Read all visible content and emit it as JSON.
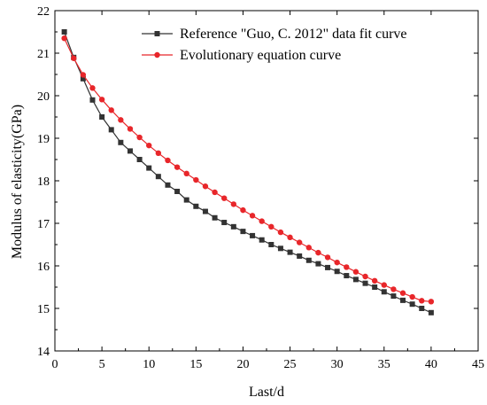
{
  "chart_data": {
    "type": "line",
    "xlabel": "Last/d",
    "ylabel": "Modulus of elasticity(GPa)",
    "xlim": [
      0,
      45
    ],
    "ylim": [
      14,
      22
    ],
    "xticks": [
      0,
      5,
      10,
      15,
      20,
      25,
      30,
      35,
      40,
      45
    ],
    "yticks": [
      14,
      15,
      16,
      17,
      18,
      19,
      20,
      21,
      22
    ],
    "grid": false,
    "legend_position": "top-right",
    "series": [
      {
        "name": "Reference \"Guo, C. 2012\" data fit curve",
        "color": "#333333",
        "marker": "square",
        "x": [
          1,
          2,
          3,
          4,
          5,
          6,
          7,
          8,
          9,
          10,
          11,
          12,
          13,
          14,
          15,
          16,
          17,
          18,
          19,
          20,
          21,
          22,
          23,
          24,
          25,
          26,
          27,
          28,
          29,
          30,
          31,
          32,
          33,
          34,
          35,
          36,
          37,
          38,
          39,
          40
        ],
        "values": [
          21.5,
          20.9,
          20.4,
          19.9,
          19.5,
          19.2,
          18.9,
          18.7,
          18.5,
          18.3,
          18.1,
          17.9,
          17.75,
          17.55,
          17.4,
          17.28,
          17.13,
          17.02,
          16.92,
          16.81,
          16.71,
          16.61,
          16.5,
          16.41,
          16.32,
          16.23,
          16.13,
          16.05,
          15.96,
          15.87,
          15.77,
          15.68,
          15.59,
          15.5,
          15.39,
          15.29,
          15.19,
          15.1,
          15.0,
          14.9
        ]
      },
      {
        "name": "Evolutionary equation curve",
        "color": "#e8262a",
        "marker": "circle",
        "x": [
          1,
          2,
          3,
          4,
          5,
          6,
          7,
          8,
          9,
          10,
          11,
          12,
          13,
          14,
          15,
          16,
          17,
          18,
          19,
          20,
          21,
          22,
          23,
          24,
          25,
          26,
          27,
          28,
          29,
          30,
          31,
          32,
          33,
          34,
          35,
          36,
          37,
          38,
          39,
          40
        ],
        "values": [
          21.35,
          20.88,
          20.49,
          20.18,
          19.91,
          19.66,
          19.43,
          19.22,
          19.02,
          18.83,
          18.65,
          18.48,
          18.32,
          18.17,
          18.02,
          17.87,
          17.73,
          17.59,
          17.45,
          17.31,
          17.18,
          17.05,
          16.92,
          16.79,
          16.67,
          16.55,
          16.43,
          16.31,
          16.2,
          16.08,
          15.97,
          15.86,
          15.75,
          15.65,
          15.55,
          15.45,
          15.36,
          15.27,
          15.18,
          15.16
        ]
      }
    ]
  }
}
